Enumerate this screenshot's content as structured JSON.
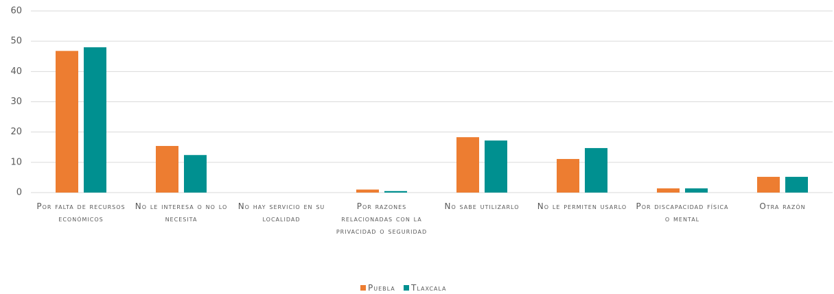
{
  "chart_data": {
    "type": "bar",
    "categories": [
      "Por falta de recursos económicos",
      "No le interesa o no lo necesita",
      "No hay servicio en su localidad",
      "Por razones relacionadas con la privacidad o seguridad",
      "No sabe utilizarlo",
      "No le permiten usarlo",
      "Por discapacidad física o mental",
      "Otra razón"
    ],
    "series": [
      {
        "name": "Puebla",
        "color": "#ED7D31",
        "values": [
          46.8,
          15.4,
          0,
          1.0,
          18.3,
          11.1,
          1.4,
          5.2
        ]
      },
      {
        "name": "Tlaxcala",
        "color": "#009090",
        "values": [
          48.0,
          12.4,
          0,
          0.5,
          17.2,
          14.7,
          1.4,
          5.2
        ]
      }
    ],
    "ylim": [
      0,
      60
    ],
    "yticks": [
      0,
      10,
      20,
      30,
      40,
      50,
      60
    ],
    "grid": true,
    "legend": "bottom"
  }
}
